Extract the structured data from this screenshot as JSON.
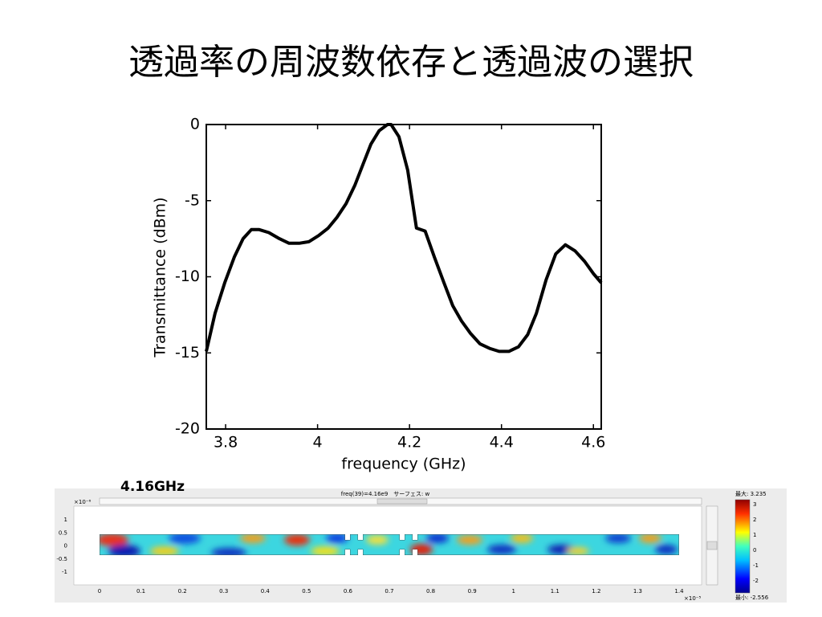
{
  "title": "透過率の周波数依存と透過波の選択",
  "chart_data": {
    "type": "line",
    "x": [
      3.758,
      3.777,
      3.798,
      3.819,
      3.838,
      3.856,
      3.873,
      3.894,
      3.917,
      3.938,
      3.96,
      3.981,
      4.002,
      4.023,
      4.042,
      4.062,
      4.081,
      4.099,
      4.116,
      4.134,
      4.152,
      4.16,
      4.177,
      4.196,
      4.215,
      4.234,
      4.254,
      4.275,
      4.294,
      4.313,
      4.332,
      4.353,
      4.374,
      4.395,
      4.416,
      4.437,
      4.457,
      4.476,
      4.497,
      4.518,
      4.539,
      4.56,
      4.581,
      4.6,
      4.617
    ],
    "values": [
      -14.9,
      -12.4,
      -10.4,
      -8.7,
      -7.5,
      -6.9,
      -6.9,
      -7.1,
      -7.5,
      -7.8,
      -7.8,
      -7.7,
      -7.3,
      -6.8,
      -6.1,
      -5.2,
      -4.0,
      -2.6,
      -1.3,
      -0.4,
      0,
      0,
      -0.8,
      -3.0,
      -6.8,
      -7.0,
      -8.7,
      -10.4,
      -11.9,
      -12.9,
      -13.7,
      -14.4,
      -14.7,
      -14.9,
      -14.9,
      -14.6,
      -13.8,
      -12.4,
      -10.2,
      -8.5,
      -7.9,
      -8.3,
      -9.0,
      -9.8,
      -10.4
    ],
    "color": "#000000",
    "xlabel": "frequency (GHz)",
    "ylabel": "Transmittance (dBm)",
    "xlim": [
      3.758,
      4.617
    ],
    "ylim": [
      -20,
      0
    ],
    "xticks": [
      3.8,
      4,
      4.2,
      4.4,
      4.6
    ],
    "yticks": [
      0,
      -5,
      -10,
      -15,
      -20
    ]
  },
  "simulation": {
    "label": "4.16GHz",
    "header": "freq(39)=4.16e9　サーフェス: w",
    "y_scale": "×10⁻⁶",
    "x_scale": "×10⁻⁵",
    "yticks": [
      1,
      0.5,
      0,
      -0.5,
      -1
    ],
    "xticks": [
      0,
      0.1,
      0.2,
      0.3,
      0.4,
      0.5,
      0.6,
      0.7,
      0.8,
      0.9,
      1,
      1.1,
      1.2,
      1.3,
      1.4
    ],
    "max_label": "最大: 3.235",
    "min_label": "最小: -2.556",
    "colorbar_ticks": [
      3,
      2,
      1,
      0,
      -1,
      -2
    ]
  }
}
